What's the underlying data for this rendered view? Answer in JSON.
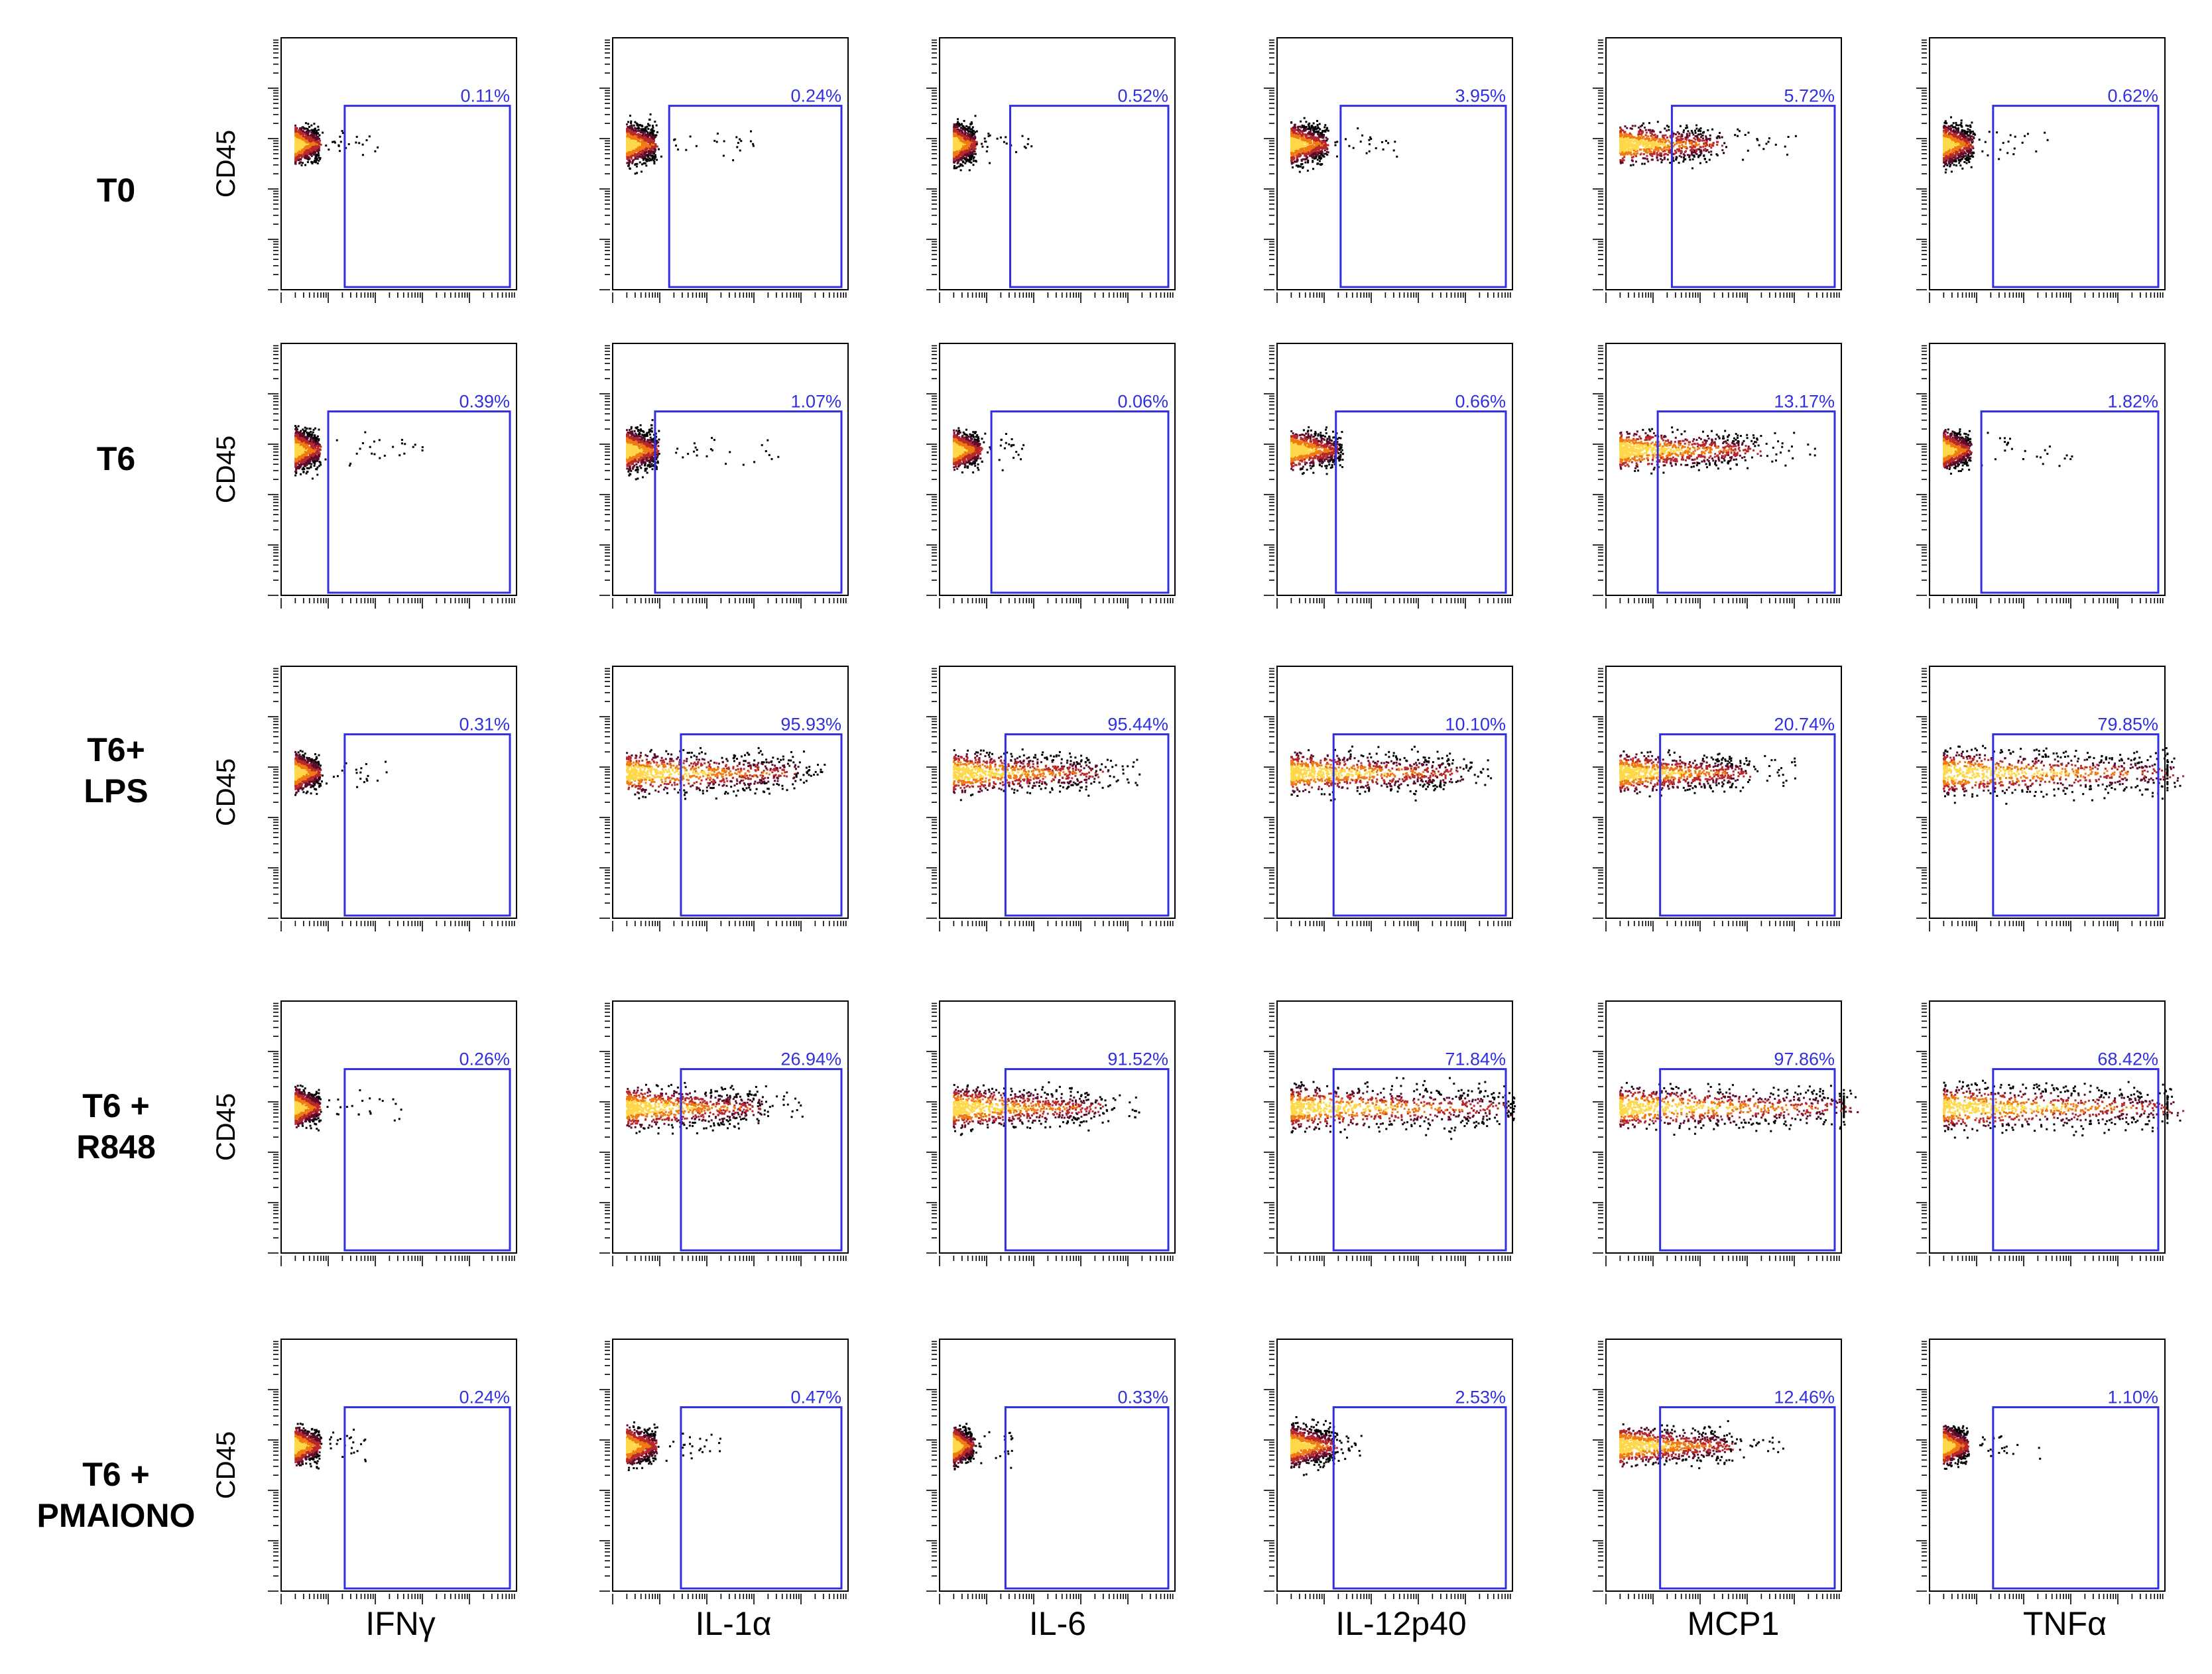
{
  "chart_data": {
    "type": "scatter",
    "description_kind": "flow cytometry density plot grid",
    "y_axis_label": "CD45",
    "rows": [
      "T0",
      "T6",
      "T6+\nLPS",
      "T6 +\nR848",
      "T6 +\nPMAIONO"
    ],
    "columns": [
      "IFNγ",
      "IL-1α",
      "IL-6",
      "IL-12p40",
      "MCP1",
      "TNFα"
    ],
    "percentages": [
      [
        "0.11%",
        "0.24%",
        "0.52%",
        "3.95%",
        "5.72%",
        "0.62%"
      ],
      [
        "0.39%",
        "1.07%",
        "0.06%",
        "0.66%",
        "13.17%",
        "1.82%"
      ],
      [
        "0.31%",
        "95.93%",
        "95.44%",
        "10.10%",
        "20.74%",
        "79.85%"
      ],
      [
        "0.26%",
        "26.94%",
        "91.52%",
        "71.84%",
        "97.86%",
        "68.42%"
      ],
      [
        "0.24%",
        "0.47%",
        "0.33%",
        "2.53%",
        "12.46%",
        "1.10%"
      ]
    ],
    "gate_color": "#3030e0",
    "density_colors": [
      "#000000",
      "#5a0a2a",
      "#b8282a",
      "#f07a12",
      "#ffd84a"
    ]
  }
}
